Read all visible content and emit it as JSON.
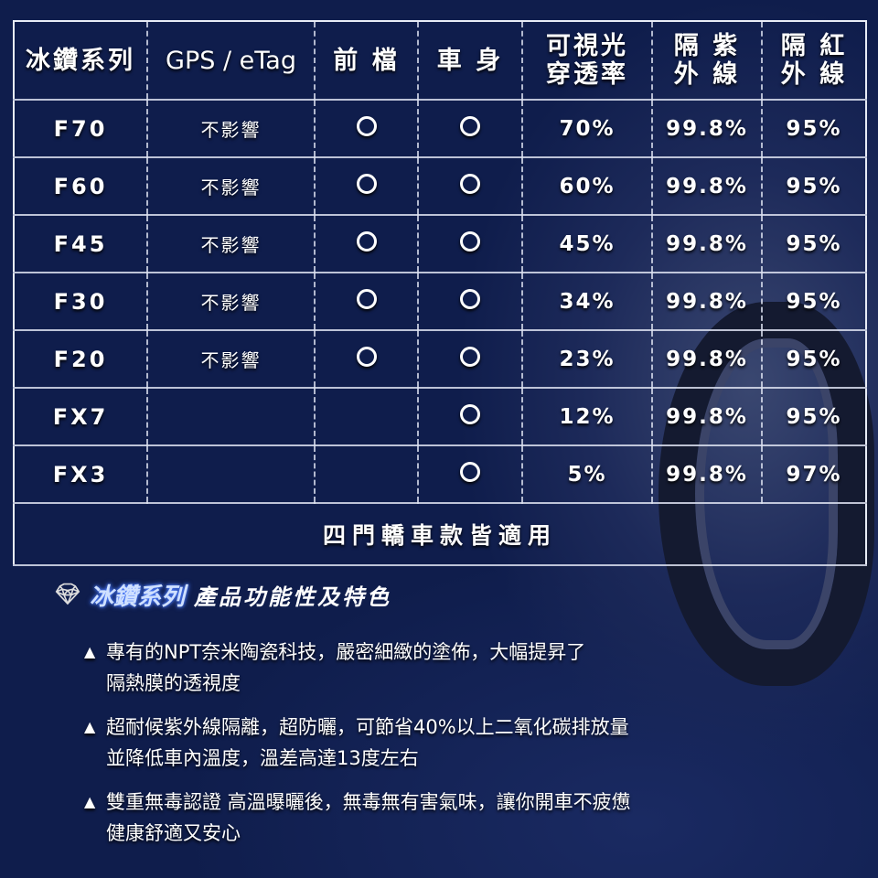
{
  "table": {
    "headers": [
      "冰鑽系列",
      "GPS / eTag",
      "前 檔",
      "車 身",
      "可視光\n穿透率",
      "隔 紫\n外 線",
      "隔 紅\n外 線"
    ],
    "rows": [
      {
        "series": "F70",
        "gps": "不影響",
        "front": true,
        "body": true,
        "vlt": "70%",
        "uv": "99.8%",
        "ir": "95%"
      },
      {
        "series": "F60",
        "gps": "不影響",
        "front": true,
        "body": true,
        "vlt": "60%",
        "uv": "99.8%",
        "ir": "95%"
      },
      {
        "series": "F45",
        "gps": "不影響",
        "front": true,
        "body": true,
        "vlt": "45%",
        "uv": "99.8%",
        "ir": "95%"
      },
      {
        "series": "F30",
        "gps": "不影響",
        "front": true,
        "body": true,
        "vlt": "34%",
        "uv": "99.8%",
        "ir": "95%"
      },
      {
        "series": "F20",
        "gps": "不影響",
        "front": true,
        "body": true,
        "vlt": "23%",
        "uv": "99.8%",
        "ir": "95%"
      },
      {
        "series": "FX7",
        "gps": "",
        "front": false,
        "body": true,
        "vlt": "12%",
        "uv": "99.8%",
        "ir": "95%"
      },
      {
        "series": "FX3",
        "gps": "",
        "front": false,
        "body": true,
        "vlt": "5%",
        "uv": "99.8%",
        "ir": "97%"
      }
    ],
    "footer": "四門轎車款皆適用"
  },
  "features": {
    "icon": "diamond-icon",
    "title_highlight": "冰鑽系列",
    "title_rest": "產品功能性及特色",
    "items": [
      "專有的NPT奈米陶瓷科技，嚴密細緻的塗佈，大幅提昇了\n隔熱膜的透視度",
      "超耐候紫外線隔離，超防曬，可節省40%以上二氧化碳排放量\n並降低車內溫度，溫差高達13度左右",
      "雙重無毒認證 高溫曝曬後，無毒無有害氣味，讓你開車不疲憊\n健康舒適又安心"
    ]
  }
}
